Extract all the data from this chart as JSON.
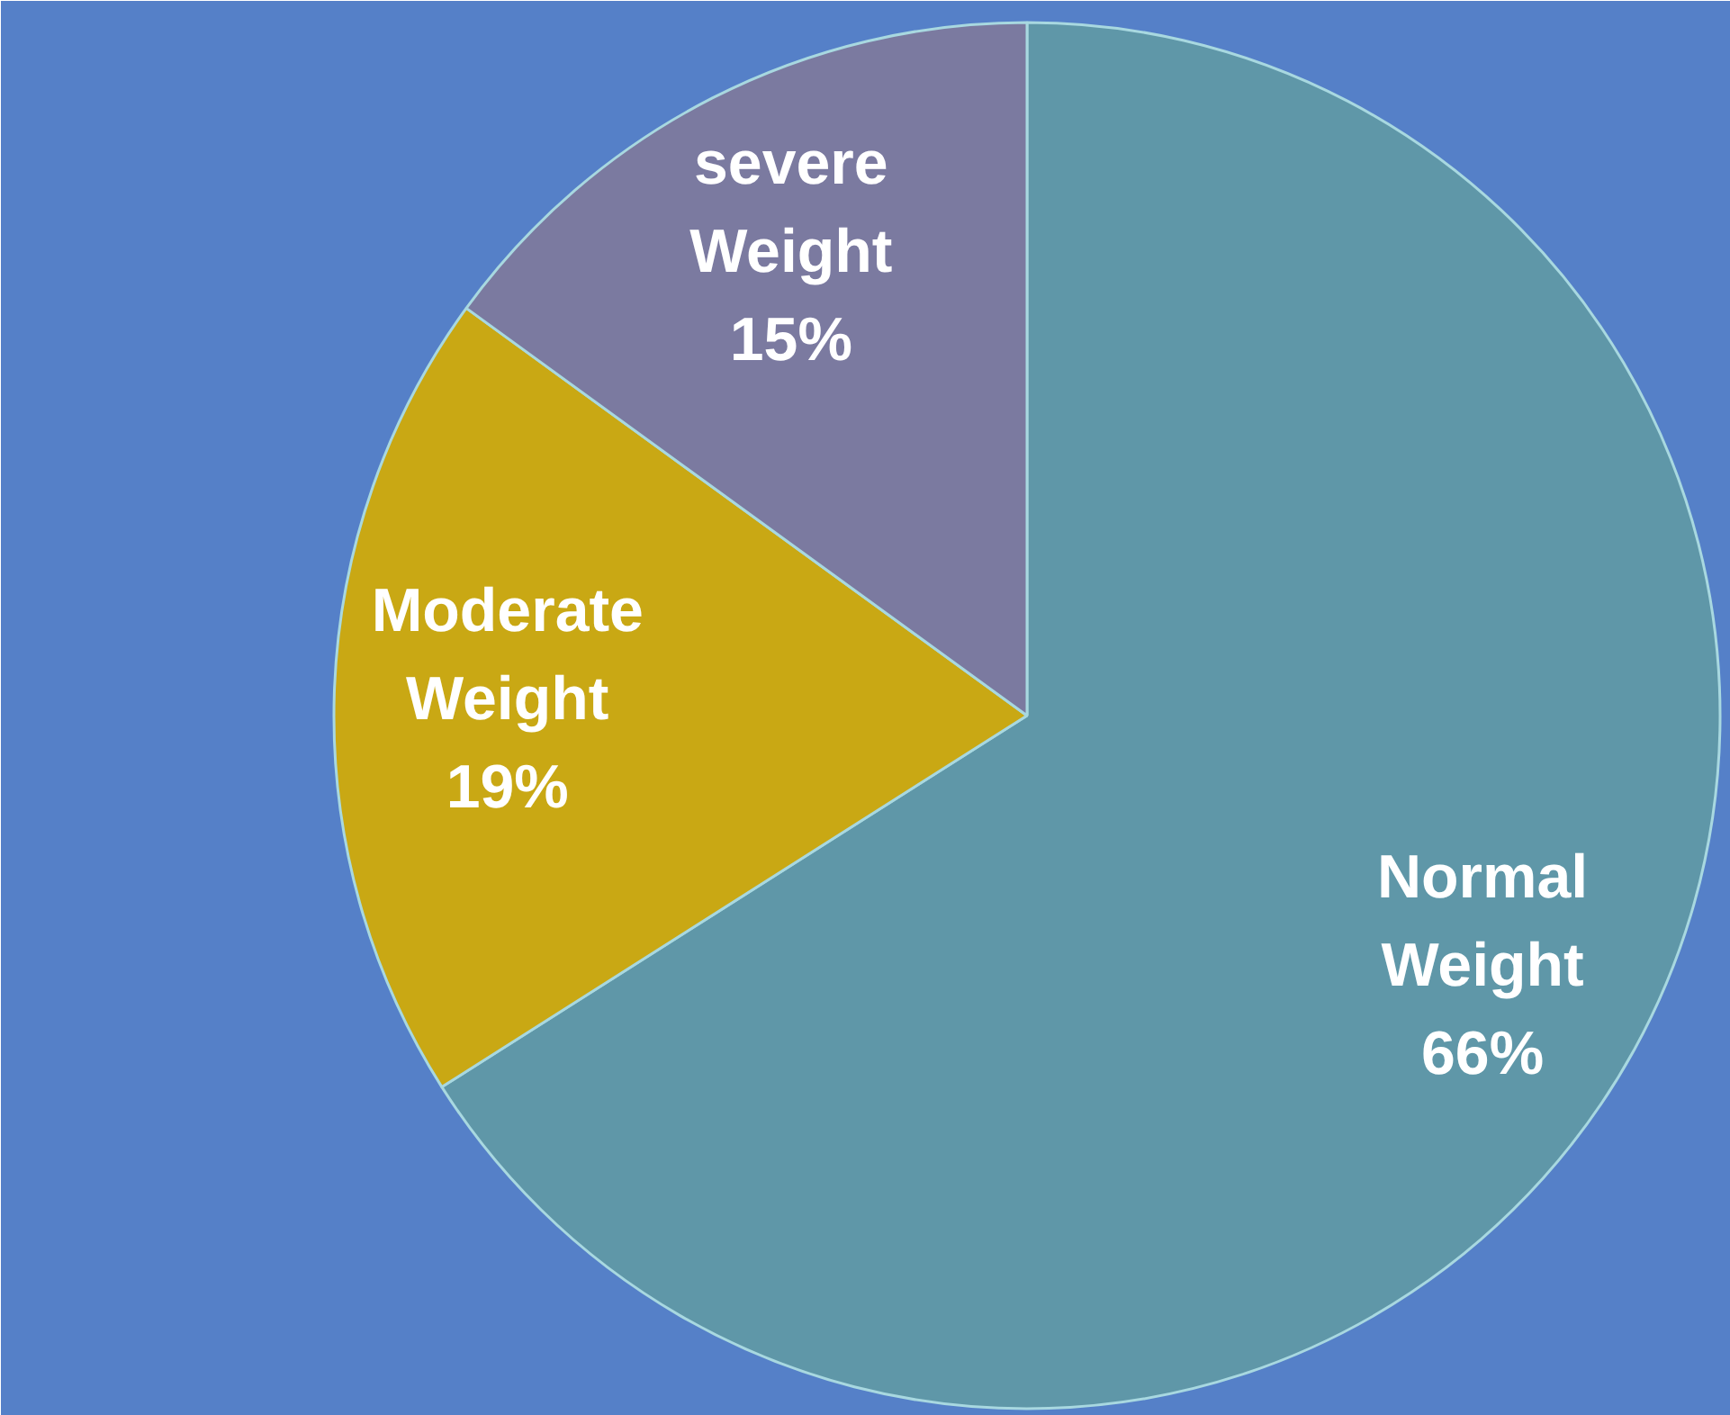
{
  "chart_data": {
    "type": "pie",
    "categories": [
      "Normal Weight",
      "Moderate Weight",
      "severe Weight"
    ],
    "values": [
      66,
      19,
      15
    ],
    "colors": [
      "#5f97a8",
      "#c9a814",
      "#7b7aa0"
    ],
    "value_labels": [
      "66%",
      "19%",
      "15%"
    ]
  }
}
